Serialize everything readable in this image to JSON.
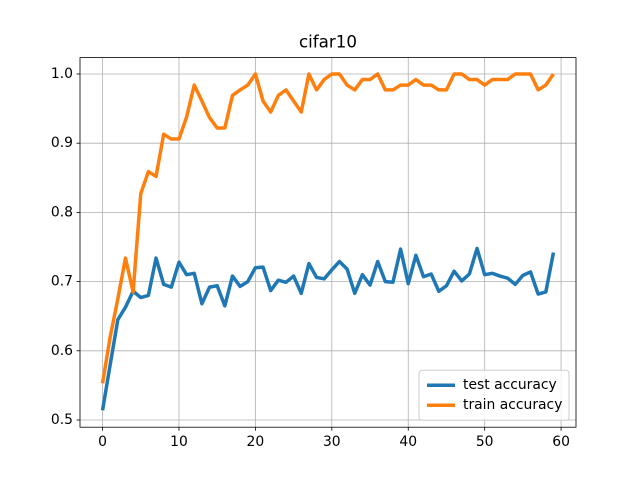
{
  "chart_data": {
    "type": "line",
    "title": "cifar10",
    "x": [
      0,
      1,
      2,
      3,
      4,
      5,
      6,
      7,
      8,
      9,
      10,
      11,
      12,
      13,
      14,
      15,
      16,
      17,
      18,
      19,
      20,
      21,
      22,
      23,
      24,
      25,
      26,
      27,
      28,
      29,
      30,
      31,
      32,
      33,
      34,
      35,
      36,
      37,
      38,
      39,
      40,
      41,
      42,
      43,
      44,
      45,
      46,
      47,
      48,
      49,
      50,
      51,
      52,
      53,
      54,
      55,
      56,
      57,
      58,
      59
    ],
    "series": [
      {
        "name": "test accuracy",
        "color": "#1f77b4",
        "values": [
          0.514,
          0.58,
          0.645,
          0.663,
          0.686,
          0.677,
          0.68,
          0.734,
          0.696,
          0.692,
          0.728,
          0.71,
          0.712,
          0.668,
          0.692,
          0.694,
          0.665,
          0.708,
          0.693,
          0.7,
          0.72,
          0.721,
          0.687,
          0.702,
          0.699,
          0.708,
          0.683,
          0.726,
          0.706,
          0.704,
          0.717,
          0.729,
          0.718,
          0.683,
          0.71,
          0.695,
          0.729,
          0.7,
          0.699,
          0.747,
          0.697,
          0.738,
          0.707,
          0.711,
          0.686,
          0.694,
          0.715,
          0.701,
          0.711,
          0.748,
          0.71,
          0.712,
          0.708,
          0.705,
          0.696,
          0.709,
          0.714,
          0.682,
          0.685,
          0.742
        ]
      },
      {
        "name": "train accuracy",
        "color": "#ff7f0e",
        "values": [
          0.553,
          0.62,
          0.675,
          0.734,
          0.685,
          0.827,
          0.859,
          0.852,
          0.913,
          0.906,
          0.906,
          0.938,
          0.984,
          0.961,
          0.937,
          0.922,
          0.922,
          0.969,
          0.977,
          0.984,
          1.0,
          0.961,
          0.945,
          0.969,
          0.977,
          0.961,
          0.945,
          1.0,
          0.977,
          0.992,
          1.0,
          1.0,
          0.984,
          0.977,
          0.992,
          0.992,
          1.0,
          0.977,
          0.977,
          0.984,
          0.984,
          0.992,
          0.984,
          0.984,
          0.977,
          0.977,
          1.0,
          1.0,
          0.992,
          0.992,
          0.984,
          0.992,
          0.992,
          0.992,
          1.0,
          1.0,
          1.0,
          0.977,
          0.984,
          1.0
        ]
      }
    ],
    "xlim": [
      -2.95,
      61.95
    ],
    "xticks": [
      0,
      10,
      20,
      30,
      40,
      50,
      60
    ],
    "ylim": [
      0.4896,
      1.0237
    ],
    "yticks": [
      0.5,
      0.6,
      0.7,
      0.8,
      0.9,
      {
        "value": 1.0,
        "label": "1.0"
      }
    ],
    "grid": true,
    "legend": "lower right"
  }
}
